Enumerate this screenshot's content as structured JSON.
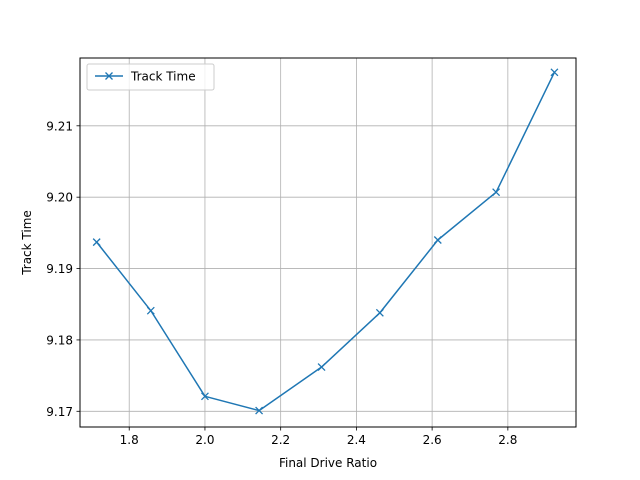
{
  "chart_data": {
    "type": "line",
    "title": "",
    "xlabel": "Final Drive Ratio",
    "ylabel": "Track Time",
    "xlim": [
      1.67,
      2.98
    ],
    "ylim": [
      9.1678,
      9.2195
    ],
    "x_ticks": [
      {
        "value": 1.8,
        "label": "1.8"
      },
      {
        "value": 2.0,
        "label": "2.0"
      },
      {
        "value": 2.2,
        "label": "2.2"
      },
      {
        "value": 2.4,
        "label": "2.4"
      },
      {
        "value": 2.6,
        "label": "2.6"
      },
      {
        "value": 2.8,
        "label": "2.8"
      }
    ],
    "y_ticks": [
      {
        "value": 9.17,
        "label": "9.17"
      },
      {
        "value": 9.18,
        "label": "9.18"
      },
      {
        "value": 9.19,
        "label": "9.19"
      },
      {
        "value": 9.2,
        "label": "9.20"
      },
      {
        "value": 9.21,
        "label": "9.21"
      }
    ],
    "grid": true,
    "legend_position": "top-left",
    "series": [
      {
        "name": "Track Time",
        "color": "#1f77b4",
        "marker": "x",
        "x": [
          1.714,
          1.857,
          2.0,
          2.143,
          2.308,
          2.462,
          2.615,
          2.769,
          2.923
        ],
        "y": [
          9.1937,
          9.1841,
          9.1721,
          9.1701,
          9.1762,
          9.1838,
          9.194,
          9.2007,
          9.2175
        ]
      }
    ]
  }
}
